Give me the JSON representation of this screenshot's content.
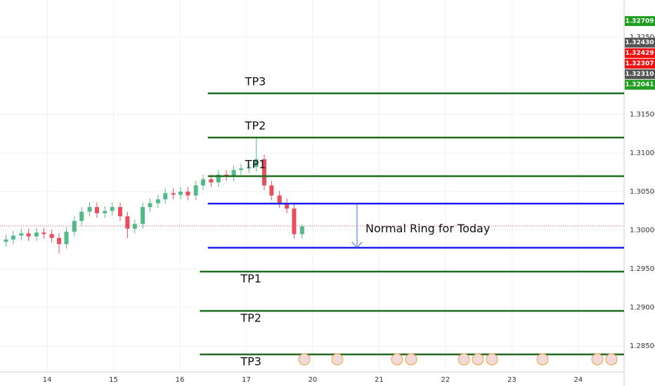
{
  "chart_data": {
    "type": "candlestick",
    "x": [
      -0.62,
      -0.51,
      -0.39,
      -0.28,
      -0.16,
      -0.05,
      0.07,
      0.18,
      0.29,
      0.41,
      0.52,
      0.64,
      0.75,
      0.87,
      0.98,
      1.1,
      1.21,
      1.32,
      1.44,
      1.55,
      1.67,
      1.78,
      1.9,
      2.01,
      2.12,
      2.24,
      2.35,
      2.47,
      2.58,
      2.7,
      2.81,
      2.92,
      3.04,
      3.15,
      3.27,
      3.38,
      3.5,
      3.61,
      3.72,
      3.84
    ],
    "open": [
      1.2985,
      1.2988,
      1.2993,
      1.2996,
      1.2992,
      1.2997,
      1.2995,
      1.299,
      1.2982,
      1.2998,
      1.3012,
      1.3024,
      1.303,
      1.3022,
      1.3025,
      1.303,
      1.3018,
      1.3002,
      1.3008,
      1.303,
      1.3035,
      1.304,
      1.3048,
      1.3046,
      1.305,
      1.3045,
      1.3058,
      1.3066,
      1.3062,
      1.3072,
      1.307,
      1.3078,
      1.308,
      1.3082,
      1.3092,
      1.3058,
      1.3045,
      1.3035,
      1.3028,
      1.2995
    ],
    "high": [
      1.2994,
      1.2999,
      1.3002,
      1.3002,
      1.3003,
      1.3003,
      1.3001,
      1.2996,
      1.3004,
      1.3018,
      1.303,
      1.3036,
      1.3036,
      1.3031,
      1.3036,
      1.3036,
      1.3024,
      1.3014,
      1.3036,
      1.3041,
      1.3046,
      1.3054,
      1.3054,
      1.3056,
      1.3056,
      1.3064,
      1.3072,
      1.3072,
      1.3078,
      1.3078,
      1.3084,
      1.3086,
      1.3088,
      1.312,
      1.3098,
      1.3064,
      1.3051,
      1.3041,
      1.3034,
      1.3008
    ],
    "low": [
      1.2979,
      1.2982,
      1.2987,
      1.2986,
      1.2986,
      1.2989,
      1.2984,
      1.297,
      1.2976,
      1.2992,
      1.3006,
      1.3018,
      1.3016,
      1.3016,
      1.3019,
      1.3012,
      1.299,
      1.2996,
      1.3002,
      1.3024,
      1.3029,
      1.3034,
      1.304,
      1.304,
      1.3039,
      1.3039,
      1.3052,
      1.3056,
      1.3056,
      1.3064,
      1.3064,
      1.3072,
      1.3074,
      1.3076,
      1.3052,
      1.3039,
      1.3029,
      1.3022,
      1.2989,
      1.2989
    ],
    "close": [
      1.2988,
      1.2993,
      1.2996,
      1.2992,
      1.2997,
      1.2995,
      1.299,
      1.2982,
      1.2998,
      1.3012,
      1.3024,
      1.303,
      1.3022,
      1.3025,
      1.303,
      1.3018,
      1.3002,
      1.3008,
      1.303,
      1.3035,
      1.304,
      1.3048,
      1.3046,
      1.305,
      1.3045,
      1.3058,
      1.3066,
      1.3062,
      1.3072,
      1.307,
      1.3078,
      1.308,
      1.3082,
      1.3092,
      1.3058,
      1.3045,
      1.3035,
      1.3028,
      1.2995,
      1.3005
    ],
    "up_color": "#53b987",
    "down_color": "#eb4d5c",
    "xlim": [
      -0.71,
      8.69
    ],
    "ylim": [
      1.28164,
      1.32982
    ],
    "xticks": [
      {
        "value": 0,
        "label": "14"
      },
      {
        "value": 1,
        "label": "15"
      },
      {
        "value": 2,
        "label": "16"
      },
      {
        "value": 3,
        "label": "17"
      },
      {
        "value": 4,
        "label": "20"
      },
      {
        "value": 5,
        "label": "21"
      },
      {
        "value": 6,
        "label": "22"
      },
      {
        "value": 7,
        "label": "23"
      },
      {
        "value": 8,
        "label": "24"
      }
    ],
    "yticks": [
      {
        "value": 1.285,
        "label": "1.28500"
      },
      {
        "value": 1.29,
        "label": "1.29000"
      },
      {
        "value": 1.295,
        "label": "1.29500"
      },
      {
        "value": 1.3,
        "label": "1.30000"
      },
      {
        "value": 1.305,
        "label": "1.30500"
      },
      {
        "value": 1.31,
        "label": "1.31000"
      },
      {
        "value": 1.315,
        "label": "1.31500"
      },
      {
        "value": 1.325,
        "label": "1.32500"
      }
    ],
    "grid": true,
    "last_price": 1.30055,
    "last_price_color": "#eb4d5c",
    "levels": [
      {
        "label": "TP3",
        "value": 1.31773,
        "color": "#1e6b1e",
        "start": 2.42
      },
      {
        "label": "TP2",
        "value": 1.312,
        "color": "#1e6b1e",
        "start": 2.42
      },
      {
        "label": "TP1",
        "value": 1.307,
        "color": "#1e6b1e",
        "start": 2.42
      },
      {
        "value": 1.30345,
        "color": "#1c1cf0",
        "start": 2.42
      },
      {
        "value": 1.29773,
        "color": "#1c1cf0",
        "start": 2.42
      },
      {
        "label": "TP1",
        "value": 1.29464,
        "color": "#1e6b1e",
        "start": 2.3
      },
      {
        "label": "TP2",
        "value": 1.28955,
        "color": "#1e6b1e",
        "start": 2.3
      },
      {
        "label": "TP3",
        "value": 1.28391,
        "color": "#1e6b1e",
        "start": 2.3
      }
    ],
    "annotation": "Normal Ring for Today",
    "badges": [
      {
        "value": 1.32709,
        "label": "1.32709",
        "color": "#1e9e1e"
      },
      {
        "value": 1.3243,
        "label": "1.32430",
        "color": "#555555"
      },
      {
        "value": 1.32429,
        "label": "1.32429",
        "color": "#ee1111"
      },
      {
        "value": 1.32307,
        "label": "1.32307",
        "color": "#ee1111"
      },
      {
        "value": 1.3231,
        "label": "1.32310",
        "color": "#555555"
      },
      {
        "value": 1.32041,
        "label": "1.32041",
        "color": "#1e9e1e"
      }
    ]
  }
}
